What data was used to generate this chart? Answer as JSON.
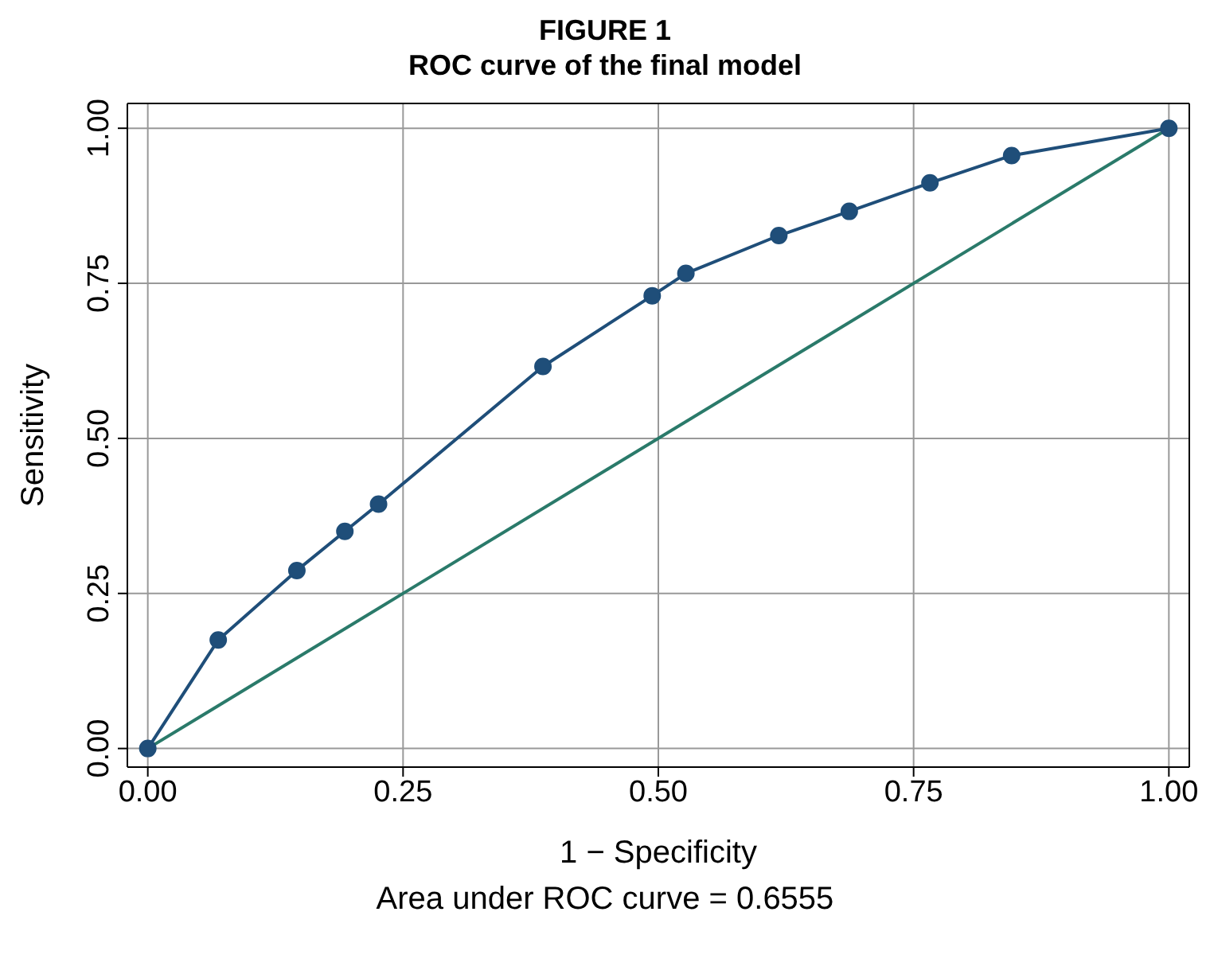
{
  "chart_data": {
    "type": "line",
    "title": "FIGURE 1",
    "subtitle": "ROC curve of the final model",
    "xlabel": "1 − Specificity",
    "ylabel": "Sensitivity",
    "annotations": [
      "Area under ROC curve = 0.6555"
    ],
    "xlim": [
      -0.02,
      1.02
    ],
    "ylim": [
      -0.03,
      1.04
    ],
    "xticks": [
      {
        "value": 0,
        "label": "0.00"
      },
      {
        "value": 0.25,
        "label": "0.25"
      },
      {
        "value": 0.5,
        "label": "0.50"
      },
      {
        "value": 0.75,
        "label": "0.75"
      },
      {
        "value": 1,
        "label": "1.00"
      }
    ],
    "yticks": [
      {
        "value": 0,
        "label": "0.00"
      },
      {
        "value": 0.25,
        "label": "0.25"
      },
      {
        "value": 0.5,
        "label": "0.50"
      },
      {
        "value": 0.75,
        "label": "0.75"
      },
      {
        "value": 1,
        "label": "1.00"
      }
    ],
    "grid": true,
    "line_style": "solid",
    "series": [
      {
        "color": "#1f4e79",
        "marker": "circle",
        "x": [
          0,
          0.069,
          0.146,
          0.193,
          0.226,
          0.387,
          0.494,
          0.527,
          0.618,
          0.687,
          0.766,
          0.846,
          1
        ],
        "values": [
          0,
          0.175,
          0.287,
          0.35,
          0.394,
          0.616,
          0.73,
          0.766,
          0.827,
          0.866,
          0.912,
          0.956,
          1
        ]
      },
      {
        "color": "#2a7a6a",
        "marker": "none",
        "x": [
          0,
          1
        ],
        "values": [
          0,
          1
        ]
      }
    ]
  }
}
